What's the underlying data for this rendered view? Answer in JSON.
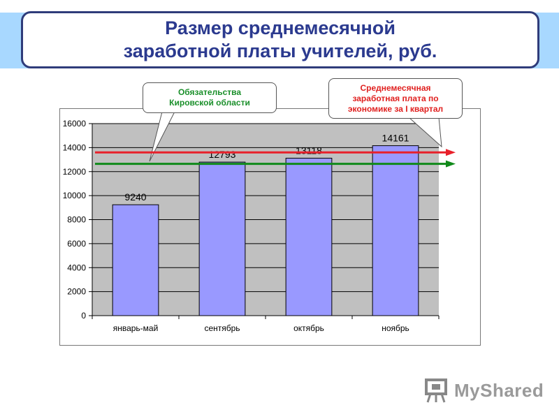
{
  "title": {
    "line1": "Размер среднемесячной",
    "line2": "заработной платы учителей, руб."
  },
  "callouts": {
    "left": [
      "Обязательства",
      "Кировской области"
    ],
    "right": [
      "Среднемесячная",
      "заработная плата по",
      "экономике за I квартал"
    ]
  },
  "logo": {
    "text": "MyShared"
  },
  "colors": {
    "bar": "#9999ff",
    "plot_area": "#c0c0c0",
    "red_line": "#e8202a",
    "green_line": "#108a1a",
    "title_text": "#2b3a8f"
  },
  "chart_data": {
    "type": "bar",
    "categories": [
      "январь-май",
      "сентябрь",
      "октябрь",
      "ноябрь"
    ],
    "values": [
      9240,
      12793,
      13118,
      14161
    ],
    "data_labels": [
      "9240",
      "12793",
      "13118",
      "14161"
    ],
    "ylim": [
      0,
      16000
    ],
    "yticks": [
      0,
      2000,
      4000,
      6000,
      8000,
      10000,
      12000,
      14000,
      16000
    ],
    "ytick_labels": [
      "0",
      "2000",
      "4000",
      "6000",
      "8000",
      "10000",
      "12000",
      "14000",
      "16000"
    ],
    "grid": true,
    "reference_lines": [
      {
        "color": "#e8202a",
        "value": 13600
      },
      {
        "color": "#108a1a",
        "value": 12650
      }
    ]
  }
}
